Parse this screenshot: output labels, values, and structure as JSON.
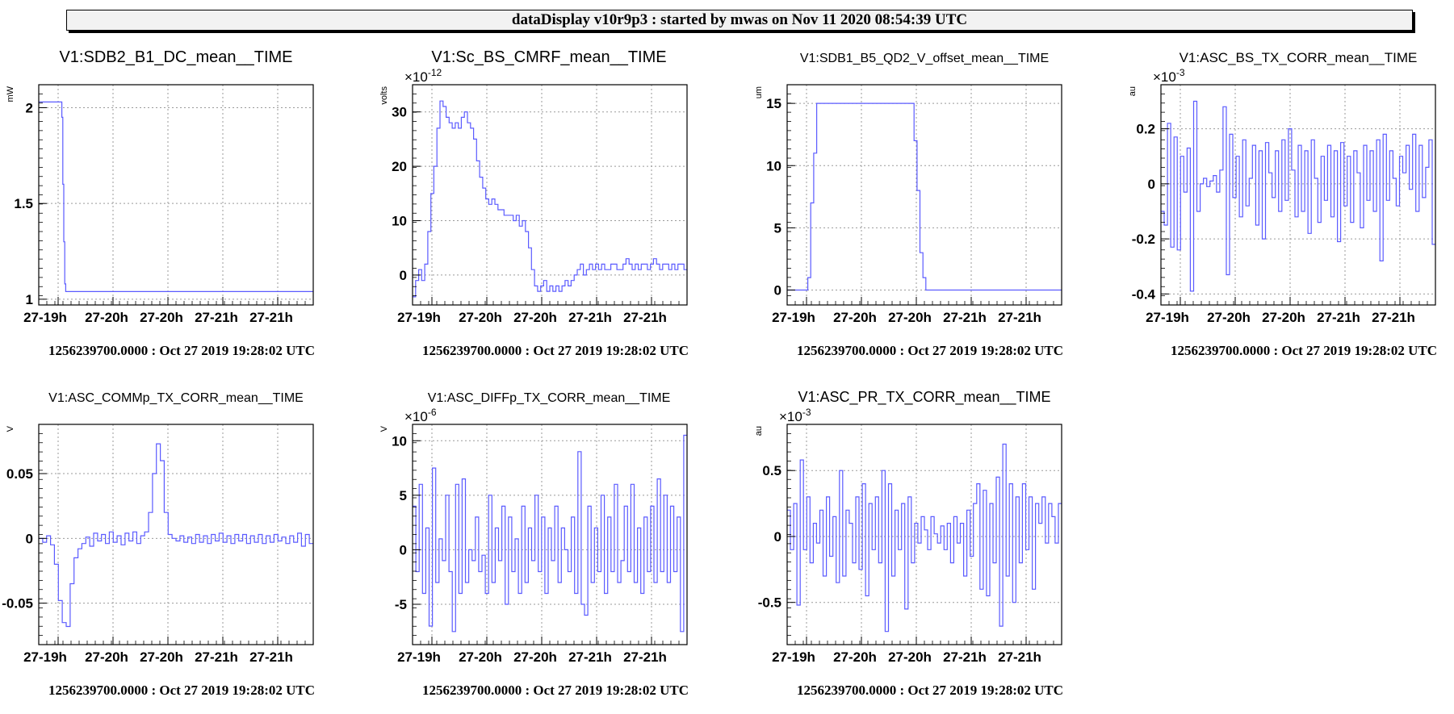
{
  "banner": "dataDisplay v10r9p3 : started by mwas on Nov 11 2020 08:54:39 UTC",
  "colors": {
    "trace": "#5b5bff",
    "grid": "#9a9a9a",
    "axis": "#000000",
    "banner_bg": "#f2f2f2"
  },
  "chart_data": [
    {
      "type": "line",
      "title": "V1:SDB2_B1_DC_mean__TIME",
      "ylabel": "mW",
      "exponent": "",
      "ylim": [
        0.97,
        2.12
      ],
      "yticks": [
        1,
        1.5,
        2
      ],
      "ytick_labels": [
        "1",
        "1.5",
        "2"
      ],
      "xtick_labels": [
        "27-19h",
        "27-20h",
        "27-20h",
        "27-21h",
        "27-21h"
      ],
      "footer": "1256239700.0000 : Oct 27 2019 19:28:02 UTC",
      "step_values": [
        2.03,
        2.03,
        2.03,
        2.03,
        2.03,
        2.03,
        2.03,
        2.03,
        2.03,
        2.03,
        2.03,
        2.03,
        2.03,
        2.03,
        2.03,
        2.03,
        2.03,
        2.03,
        2.03,
        2.03,
        2.03,
        2.03,
        2.03,
        2.03,
        1.95,
        1.6,
        1.3,
        1.08,
        1.04,
        1.04,
        1.04,
        1.04,
        1.04,
        1.04,
        1.04,
        1.04,
        1.04,
        1.04,
        1.04,
        1.04,
        1.04,
        1.04,
        1.04,
        1.04,
        1.04,
        1.04,
        1.04,
        1.04,
        1.04,
        1.04,
        1.04,
        1.04,
        1.04,
        1.04,
        1.04,
        1.04,
        1.04,
        1.04,
        1.04,
        1.04,
        1.04,
        1.04,
        1.04,
        1.04,
        1.04,
        1.04,
        1.04,
        1.04,
        1.04,
        1.04,
        1.04,
        1.04,
        1.04,
        1.04,
        1.04,
        1.04,
        1.04,
        1.04,
        1.04,
        1.04,
        1.04,
        1.04,
        1.04,
        1.04,
        1.04,
        1.04,
        1.04,
        1.04,
        1.04,
        1.04,
        1.04,
        1.04,
        1.04,
        1.04,
        1.04,
        1.04,
        1.04,
        1.04,
        1.04,
        1.04,
        1.04,
        1.04,
        1.04,
        1.04,
        1.04,
        1.04,
        1.04,
        1.04,
        1.04,
        1.04,
        1.04,
        1.04,
        1.04,
        1.04,
        1.04,
        1.04,
        1.04,
        1.04,
        1.04,
        1.04,
        1.04,
        1.04,
        1.04,
        1.04,
        1.04,
        1.04,
        1.04,
        1.04,
        1.04,
        1.04,
        1.04,
        1.04,
        1.04,
        1.04,
        1.04,
        1.04,
        1.04,
        1.04,
        1.04,
        1.04,
        1.04,
        1.04,
        1.04,
        1.04,
        1.04,
        1.04,
        1.04,
        1.04,
        1.04,
        1.04,
        1.04,
        1.04,
        1.04,
        1.04,
        1.04,
        1.04,
        1.04,
        1.04,
        1.04,
        1.04,
        1.04,
        1.04,
        1.04,
        1.04,
        1.04,
        1.04,
        1.04,
        1.04,
        1.04,
        1.04,
        1.04,
        1.04,
        1.04,
        1.04,
        1.04,
        1.04,
        1.04,
        1.04,
        1.04,
        1.04,
        1.04,
        1.04,
        1.04,
        1.04,
        1.04,
        1.04,
        1.04,
        1.04,
        1.04,
        1.04,
        1.04,
        1.04,
        1.04,
        1.04,
        1.04,
        1.04,
        1.04,
        1.04,
        1.04,
        1.04,
        1.04,
        1.04,
        1.04,
        1.04,
        1.04,
        1.04,
        1.04,
        1.04,
        1.04,
        1.04,
        1.04,
        1.04,
        1.04,
        1.04,
        1.04,
        1.04,
        1.04,
        1.04,
        1.04,
        1.04,
        1.04,
        1.04,
        1.04,
        1.04,
        1.04,
        1.04,
        1.04,
        1.04,
        1.04,
        1.04,
        1.04,
        1.04,
        1.04,
        1.04,
        1.04,
        1.04,
        1.04,
        1.04,
        1.04,
        1.04,
        1.04,
        1.04,
        1.04,
        1.04,
        1.04,
        1.04,
        1.04,
        1.04,
        1.04,
        1.04,
        1.04,
        1.04,
        1.04,
        1.04,
        1.04,
        1.04,
        1.04,
        1.04,
        1.04,
        1.04,
        1.04,
        1.04,
        1.04,
        1.04,
        1.04,
        1.04,
        1.04,
        1.04,
        1.04,
        1.04,
        1.04,
        1.04,
        1.04,
        1.04,
        1.04,
        1.04,
        1.04,
        1.04,
        1.04,
        1.04,
        1.04,
        1.04,
        1.04,
        1.04,
        1.04
      ]
    },
    {
      "type": "line",
      "title": "V1:Sc_BS_CMRF_mean__TIME",
      "ylabel": "volts",
      "exponent": "×10",
      "exponent_power": "-12",
      "ylim": [
        -5.5,
        35
      ],
      "yticks": [
        0,
        10,
        20,
        30
      ],
      "ytick_labels": [
        "0",
        "10",
        "20",
        "30"
      ],
      "xtick_labels": [
        "27-19h",
        "27-20h",
        "27-20h",
        "27-21h",
        "27-21h"
      ],
      "footer": "1256239700.0000 : Oct 27 2019 19:28:02 UTC",
      "step_values": [
        -4,
        -1,
        1,
        -1,
        2,
        8,
        15,
        20,
        27,
        32,
        31,
        29,
        28,
        27,
        28,
        27,
        29,
        30,
        28,
        27,
        25,
        21,
        18,
        16,
        14,
        13,
        14,
        13,
        12,
        12,
        11,
        11,
        11,
        10,
        11,
        9,
        10,
        8,
        5,
        1,
        -2,
        -3,
        -2,
        -1,
        -3,
        -2,
        -3,
        -2,
        -3,
        -2,
        -1,
        -2,
        -1,
        0,
        1,
        2,
        0,
        1,
        2,
        1,
        2,
        1,
        2,
        1,
        1,
        2,
        2,
        1,
        1,
        2,
        3,
        2,
        1,
        2,
        1,
        2,
        2,
        1,
        2,
        3,
        2,
        1,
        2,
        2,
        1,
        2,
        1,
        2,
        2,
        1
      ]
    },
    {
      "type": "line",
      "title": "V1:SDB1_B5_QD2_V_offset_mean__TIME",
      "ylabel": "um",
      "exponent": "",
      "ylim": [
        -1.2,
        16.5
      ],
      "yticks": [
        0,
        5,
        10,
        15
      ],
      "ytick_labels": [
        "0",
        "5",
        "10",
        "15"
      ],
      "xtick_labels": [
        "27-19h",
        "27-20h",
        "27-20h",
        "27-21h",
        "27-21h"
      ],
      "footer": "1256239700.0000 : Oct 27 2019 19:28:02 UTC",
      "step_values": [
        0,
        0,
        0,
        0,
        0,
        0,
        0,
        1,
        7,
        11,
        15,
        15,
        15,
        15,
        15,
        15,
        15,
        15,
        15,
        15,
        15,
        15,
        15,
        15,
        15,
        15,
        15,
        15,
        15,
        15,
        15,
        15,
        15,
        15,
        15,
        15,
        15,
        15,
        15,
        15,
        15,
        15,
        15,
        12,
        8,
        3,
        1,
        0,
        0,
        0,
        0,
        0,
        0,
        0,
        0,
        0,
        0,
        0,
        0,
        0,
        0,
        0,
        0,
        0,
        0,
        0,
        0,
        0,
        0,
        0,
        0,
        0,
        0,
        0,
        0,
        0,
        0,
        0,
        0,
        0,
        0,
        0,
        0,
        0,
        0,
        0,
        0,
        0,
        0,
        0,
        0,
        0,
        0
      ]
    },
    {
      "type": "line",
      "title": "V1:ASC_BS_TX_CORR_mean__TIME",
      "ylabel": "au",
      "exponent": "×10",
      "exponent_power": "-3",
      "ylim": [
        -0.44,
        0.36
      ],
      "yticks": [
        -0.4,
        -0.2,
        0,
        0.2
      ],
      "ytick_labels": [
        "-0.4",
        "-0.2",
        "0",
        "0.2"
      ],
      "xtick_labels": [
        "27-19h",
        "27-20h",
        "27-20h",
        "27-21h",
        "27-21h"
      ],
      "footer": "1256239700.0000 : Oct 27 2019 19:28:02 UTC",
      "step_values": [
        -0.1,
        -0.15,
        0.22,
        -0.23,
        0.17,
        -0.24,
        0.1,
        -0.03,
        0.13,
        -0.39,
        0.3,
        -0.1,
        0,
        0.02,
        -0.01,
        0.01,
        0.03,
        -0.03,
        0.05,
        0.28,
        -0.33,
        0.18,
        -0.05,
        0.1,
        -0.12,
        0.16,
        -0.08,
        0.02,
        0.14,
        -0.15,
        0.12,
        -0.2,
        0.15,
        0.04,
        -0.05,
        0.12,
        -0.1,
        0.16,
        -0.06,
        0.2,
        0.05,
        -0.12,
        0.14,
        -0.1,
        0.12,
        -0.18,
        0.16,
        0.02,
        -0.14,
        0.1,
        -0.06,
        0.14,
        -0.12,
        0.12,
        -0.21,
        0.15,
        -0.08,
        0.1,
        -0.14,
        0.12,
        0.04,
        -0.16,
        0.14,
        -0.06,
        0.12,
        -0.1,
        0.16,
        -0.28,
        0.18,
        -0.06,
        0.12,
        0.02,
        -0.08,
        0.1,
        0.04,
        0.14,
        -0.02,
        0.18,
        -0.1,
        0.14,
        -0.05,
        0.06,
        0.16,
        -0.22
      ]
    },
    {
      "type": "line",
      "title": "V1:ASC_COMMp_TX_CORR_mean__TIME",
      "ylabel": "V",
      "exponent": "",
      "ylim": [
        -0.082,
        0.088
      ],
      "yticks": [
        -0.05,
        0,
        0.05
      ],
      "ytick_labels": [
        "-0.05",
        "0",
        "0.05"
      ],
      "xtick_labels": [
        "27-19h",
        "27-20h",
        "27-20h",
        "27-21h",
        "27-21h"
      ],
      "footer": "1256239700.0000 : Oct 27 2019 19:28:02 UTC",
      "step_values": [
        0,
        -0.003,
        0.002,
        -0.005,
        -0.02,
        -0.048,
        -0.065,
        -0.068,
        -0.035,
        -0.015,
        -0.008,
        -0.004,
        0.001,
        -0.006,
        0.004,
        -0.002,
        0.003,
        -0.004,
        0.005,
        -0.003,
        0.002,
        -0.005,
        0.004,
        -0.002,
        0.005,
        -0.004,
        0.002,
        0.005,
        0.02,
        0.05,
        0.073,
        0.06,
        0.02,
        0.003,
        0,
        -0.002,
        0.002,
        -0.003,
        0.001,
        -0.004,
        0.003,
        -0.003,
        0.002,
        -0.004,
        0.003,
        -0.002,
        0.004,
        -0.003,
        0.002,
        -0.004,
        0.003,
        -0.002,
        0.003,
        -0.004,
        0.002,
        -0.003,
        0.003,
        -0.004,
        0.002,
        -0.003,
        0.003,
        -0.002,
        0.001,
        -0.004,
        0.002,
        -0.003,
        0.004,
        -0.006,
        0.003,
        -0.004
      ]
    },
    {
      "type": "line",
      "title": "V1:ASC_DIFFp_TX_CORR_mean__TIME",
      "ylabel": "V",
      "exponent": "×10",
      "exponent_power": "-6",
      "ylim": [
        -8.7,
        11.5
      ],
      "yticks": [
        -5,
        0,
        5,
        10
      ],
      "ytick_labels": [
        "-5",
        "0",
        "5",
        "10"
      ],
      "xtick_labels": [
        "27-19h",
        "27-20h",
        "27-20h",
        "27-21h",
        "27-21h"
      ],
      "footer": "1256239700.0000 : Oct 27 2019 19:28:02 UTC",
      "step_values": [
        4,
        -2,
        6,
        -4,
        2,
        -7,
        7.5,
        -3,
        1,
        -1,
        5,
        -2,
        -7.5,
        6,
        -4,
        6.5,
        -3,
        0,
        -1,
        3,
        -2,
        -0.5,
        -4,
        5,
        -3,
        2,
        -1,
        4,
        -5,
        3,
        -2,
        1,
        -4,
        4,
        -3,
        2,
        -1,
        5,
        -2,
        3,
        -4,
        2,
        -1,
        4,
        -3,
        2,
        0,
        -2,
        3,
        -4,
        9,
        -5,
        -6,
        4,
        -3,
        2,
        -2,
        5,
        -4,
        3,
        -2,
        6,
        -3,
        -1,
        4,
        -2,
        6,
        -3,
        2,
        -4,
        3,
        -2,
        4,
        -3,
        6.5,
        -2,
        5,
        -3,
        4,
        -2,
        3,
        -7.5,
        10.5
      ]
    },
    {
      "type": "line",
      "title": "V1:ASC_PR_TX_CORR_mean__TIME",
      "ylabel": "au",
      "exponent": "×10",
      "exponent_power": "-3",
      "ylim": [
        -0.82,
        0.85
      ],
      "yticks": [
        -0.5,
        0,
        0.5
      ],
      "ytick_labels": [
        "-0.5",
        "0",
        "0.5"
      ],
      "xtick_labels": [
        "27-19h",
        "27-20h",
        "27-20h",
        "27-21h",
        "27-21h"
      ],
      "footer": "1256239700.0000 : Oct 27 2019 19:28:02 UTC",
      "step_values": [
        0.2,
        -0.1,
        0.25,
        -0.52,
        0.58,
        -0.1,
        0.3,
        -0.2,
        0.1,
        -0.05,
        0.2,
        -0.3,
        0.3,
        -0.15,
        0.15,
        -0.35,
        0.5,
        -0.3,
        0.2,
        0.1,
        -0.2,
        0.3,
        -0.25,
        0.4,
        -0.45,
        0.25,
        -0.1,
        0.3,
        -0.2,
        0.5,
        -0.72,
        0.4,
        -0.3,
        0.2,
        -0.1,
        0.25,
        -0.55,
        0.3,
        -0.2,
        0.1,
        -0.05,
        0.15,
        0.05,
        -0.1,
        0.15,
        0.02,
        -0.05,
        0.08,
        -0.1,
        0.1,
        -0.2,
        0.15,
        -0.05,
        0.1,
        -0.3,
        0.2,
        -0.15,
        0.25,
        0.4,
        -0.4,
        0.35,
        -0.45,
        0.25,
        -0.2,
        0.45,
        -0.68,
        0.7,
        -0.3,
        0.4,
        -0.5,
        0.3,
        -0.2,
        0.4,
        -0.1,
        0.3,
        -0.4,
        0.25,
        0.1,
        0.3,
        -0.05,
        0.25,
        0.15,
        -0.05,
        0.25
      ]
    }
  ]
}
